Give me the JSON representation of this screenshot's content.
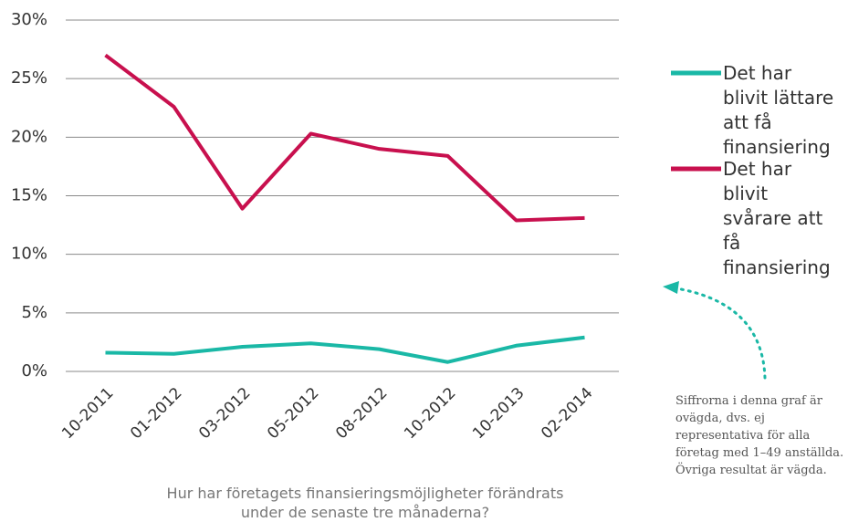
{
  "chart_data": {
    "type": "line",
    "x_label": "Hur har företagets finansieringsmöjligheter förändrats under de senaste tre månaderna?",
    "annotation": "Siffrorna i denna graf är ovägda, dvs. ej representativa för alla företag med 1–49 anställda. Övriga resultat är vägda.",
    "categories": [
      "10-2011",
      "01-2012",
      "03-2012",
      "05-2012",
      "08-2012",
      "10-2012",
      "10-2013",
      "02-2014"
    ],
    "series": [
      {
        "name": "Det har blivit lättare att få finansiering",
        "color": "#1ab8a6",
        "values": [
          1.6,
          1.5,
          2.1,
          2.4,
          1.9,
          0.8,
          2.2,
          2.9
        ]
      },
      {
        "name": "Det har blivit svårare att få finansiering",
        "color": "#c8104e",
        "values": [
          27.0,
          22.6,
          13.9,
          20.3,
          19.0,
          18.4,
          12.9,
          13.1
        ]
      }
    ],
    "ylim": [
      0,
      30
    ],
    "yticks": [
      {
        "value": 0,
        "label": "0%"
      },
      {
        "value": 5,
        "label": "5%"
      },
      {
        "value": 10,
        "label": "10%"
      },
      {
        "value": 15,
        "label": "15%"
      },
      {
        "value": 20,
        "label": "20%"
      },
      {
        "value": 25,
        "label": "25%"
      },
      {
        "value": 30,
        "label": "30%"
      }
    ],
    "grid": true
  }
}
